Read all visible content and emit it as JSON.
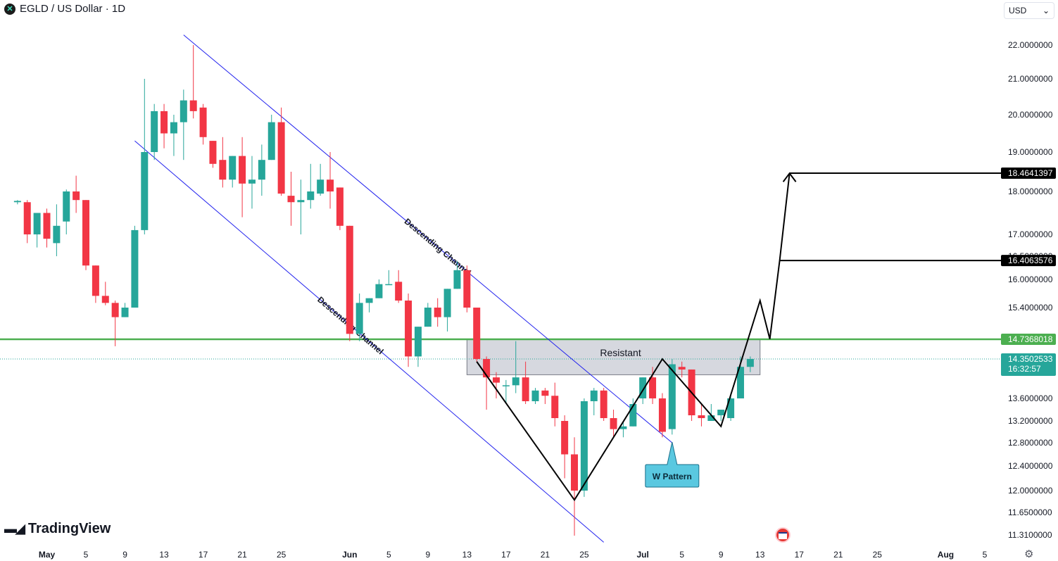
{
  "header": {
    "symbol_icon": "egld-logo-icon",
    "title": "EGLD / US Dollar · 1D"
  },
  "currency_select": {
    "value": "USD"
  },
  "branding": {
    "logo_text": "TradingView"
  },
  "footer": {
    "settings_icon": "gear-icon"
  },
  "colors": {
    "up": "#26a69a",
    "down": "#f23645",
    "channel": "#2222ee",
    "support": "#4caf50",
    "grid": "#f0f3fa"
  },
  "chart_data": {
    "type": "candlestick",
    "price_axis_ticks": [
      "22.0000000",
      "21.0000000",
      "20.0000000",
      "19.0000000",
      "18.0000000",
      "17.0000000",
      "16.5000000",
      "16.0000000",
      "15.4000000",
      "14.7368018",
      "13.6000000",
      "13.2000000",
      "12.8000000",
      "12.4000000",
      "12.0000000",
      "11.6500000",
      "11.3100000"
    ],
    "time_axis_ticks": [
      "May",
      "5",
      "9",
      "13",
      "17",
      "21",
      "25",
      "Jun",
      "5",
      "9",
      "13",
      "17",
      "21",
      "25",
      "Jul",
      "5",
      "9",
      "13",
      "17",
      "21",
      "25",
      "Aug",
      "5"
    ],
    "candles": [
      {
        "date": "2024-04-28",
        "o": 17.75,
        "h": 17.8,
        "l": 17.7,
        "c": 17.78
      },
      {
        "date": "2024-04-29",
        "o": 17.75,
        "h": 17.8,
        "l": 16.8,
        "c": 17.0
      },
      {
        "date": "2024-04-30",
        "o": 17.0,
        "h": 17.5,
        "l": 16.7,
        "c": 17.5
      },
      {
        "date": "2024-05-01",
        "o": 17.5,
        "h": 17.6,
        "l": 16.7,
        "c": 16.9
      },
      {
        "date": "2024-05-02",
        "o": 16.8,
        "h": 17.7,
        "l": 16.5,
        "c": 17.2
      },
      {
        "date": "2024-05-03",
        "o": 17.3,
        "h": 18.05,
        "l": 17.0,
        "c": 18.0
      },
      {
        "date": "2024-05-04",
        "o": 18.0,
        "h": 18.4,
        "l": 17.5,
        "c": 17.8
      },
      {
        "date": "2024-05-05",
        "o": 17.8,
        "h": 17.8,
        "l": 16.2,
        "c": 16.3
      },
      {
        "date": "2024-05-06",
        "o": 16.3,
        "h": 16.3,
        "l": 15.5,
        "c": 15.65
      },
      {
        "date": "2024-05-07",
        "o": 15.65,
        "h": 15.95,
        "l": 15.45,
        "c": 15.5
      },
      {
        "date": "2024-05-08",
        "o": 15.5,
        "h": 15.55,
        "l": 14.6,
        "c": 15.2
      },
      {
        "date": "2024-05-09",
        "o": 15.2,
        "h": 15.5,
        "l": 15.2,
        "c": 15.4
      },
      {
        "date": "2024-05-10",
        "o": 15.4,
        "h": 17.2,
        "l": 15.4,
        "c": 17.1
      },
      {
        "date": "2024-05-11",
        "o": 17.1,
        "h": 21.0,
        "l": 17.0,
        "c": 19.0
      },
      {
        "date": "2024-05-12",
        "o": 19.0,
        "h": 20.3,
        "l": 18.8,
        "c": 20.1
      },
      {
        "date": "2024-05-13",
        "o": 20.1,
        "h": 20.3,
        "l": 19.1,
        "c": 19.5
      },
      {
        "date": "2024-05-14",
        "o": 19.5,
        "h": 20.0,
        "l": 18.9,
        "c": 19.8
      },
      {
        "date": "2024-05-15",
        "o": 19.8,
        "h": 20.7,
        "l": 18.8,
        "c": 20.4
      },
      {
        "date": "2024-05-16",
        "o": 20.4,
        "h": 22.0,
        "l": 19.9,
        "c": 20.1
      },
      {
        "date": "2024-05-17",
        "o": 20.2,
        "h": 20.3,
        "l": 19.2,
        "c": 19.4
      },
      {
        "date": "2024-05-18",
        "o": 19.3,
        "h": 19.3,
        "l": 18.6,
        "c": 18.7
      },
      {
        "date": "2024-05-19",
        "o": 18.8,
        "h": 19.4,
        "l": 18.1,
        "c": 18.3
      },
      {
        "date": "2024-05-20",
        "o": 18.3,
        "h": 18.9,
        "l": 18.1,
        "c": 18.9
      },
      {
        "date": "2024-05-21",
        "o": 18.9,
        "h": 19.4,
        "l": 17.4,
        "c": 18.2
      },
      {
        "date": "2024-05-22",
        "o": 18.2,
        "h": 18.9,
        "l": 17.6,
        "c": 18.3
      },
      {
        "date": "2024-05-23",
        "o": 18.3,
        "h": 19.2,
        "l": 17.9,
        "c": 18.8
      },
      {
        "date": "2024-05-24",
        "o": 18.8,
        "h": 20.0,
        "l": 18.8,
        "c": 19.8
      },
      {
        "date": "2024-05-25",
        "o": 19.8,
        "h": 20.2,
        "l": 17.9,
        "c": 17.95
      },
      {
        "date": "2024-05-26",
        "o": 17.9,
        "h": 18.5,
        "l": 17.2,
        "c": 17.75
      },
      {
        "date": "2024-05-27",
        "o": 17.75,
        "h": 18.3,
        "l": 17.0,
        "c": 17.8
      },
      {
        "date": "2024-05-28",
        "o": 17.8,
        "h": 18.7,
        "l": 17.6,
        "c": 18.0
      },
      {
        "date": "2024-05-29",
        "o": 17.95,
        "h": 18.7,
        "l": 17.9,
        "c": 18.3
      },
      {
        "date": "2024-05-30",
        "o": 18.3,
        "h": 19.0,
        "l": 17.6,
        "c": 18.0
      },
      {
        "date": "2024-05-31",
        "o": 18.1,
        "h": 18.1,
        "l": 17.1,
        "c": 17.2
      },
      {
        "date": "2024-06-01",
        "o": 17.2,
        "h": 17.2,
        "l": 14.7,
        "c": 14.85
      },
      {
        "date": "2024-06-02",
        "o": 14.85,
        "h": 15.7,
        "l": 14.7,
        "c": 15.5
      },
      {
        "date": "2024-06-03",
        "o": 15.5,
        "h": 15.6,
        "l": 15.3,
        "c": 15.6
      },
      {
        "date": "2024-06-04",
        "o": 15.6,
        "h": 16.0,
        "l": 15.6,
        "c": 15.9
      },
      {
        "date": "2024-06-05",
        "o": 15.9,
        "h": 16.2,
        "l": 15.9,
        "c": 15.9
      },
      {
        "date": "2024-06-06",
        "o": 15.95,
        "h": 16.2,
        "l": 15.5,
        "c": 15.55
      },
      {
        "date": "2024-06-07",
        "o": 15.55,
        "h": 15.7,
        "l": 14.2,
        "c": 14.4
      },
      {
        "date": "2024-06-08",
        "o": 14.4,
        "h": 15.0,
        "l": 14.2,
        "c": 15.0
      },
      {
        "date": "2024-06-09",
        "o": 15.0,
        "h": 15.5,
        "l": 15.0,
        "c": 15.4
      },
      {
        "date": "2024-06-10",
        "o": 15.4,
        "h": 15.6,
        "l": 15.0,
        "c": 15.2
      },
      {
        "date": "2024-06-11",
        "o": 15.2,
        "h": 15.8,
        "l": 14.9,
        "c": 15.8
      },
      {
        "date": "2024-06-12",
        "o": 15.8,
        "h": 16.4,
        "l": 15.8,
        "c": 16.2
      },
      {
        "date": "2024-06-13",
        "o": 16.2,
        "h": 16.3,
        "l": 15.3,
        "c": 15.4
      },
      {
        "date": "2024-06-14",
        "o": 15.4,
        "h": 15.4,
        "l": 14.3,
        "c": 14.35
      },
      {
        "date": "2024-06-15",
        "o": 14.35,
        "h": 14.4,
        "l": 13.4,
        "c": 14.0
      },
      {
        "date": "2024-06-16",
        "o": 14.0,
        "h": 14.1,
        "l": 13.6,
        "c": 13.9
      },
      {
        "date": "2024-06-17",
        "o": 13.85,
        "h": 13.95,
        "l": 13.5,
        "c": 13.85
      },
      {
        "date": "2024-06-18",
        "o": 13.85,
        "h": 14.7,
        "l": 13.7,
        "c": 14.0
      },
      {
        "date": "2024-06-19",
        "o": 14.0,
        "h": 14.3,
        "l": 13.5,
        "c": 13.55
      },
      {
        "date": "2024-06-20",
        "o": 13.55,
        "h": 13.8,
        "l": 13.5,
        "c": 13.75
      },
      {
        "date": "2024-06-21",
        "o": 13.75,
        "h": 13.8,
        "l": 13.5,
        "c": 13.65
      },
      {
        "date": "2024-06-22",
        "o": 13.65,
        "h": 13.9,
        "l": 13.1,
        "c": 13.25
      },
      {
        "date": "2024-06-23",
        "o": 13.2,
        "h": 13.3,
        "l": 12.2,
        "c": 12.6
      },
      {
        "date": "2024-06-24",
        "o": 12.6,
        "h": 12.9,
        "l": 11.3,
        "c": 12.0
      },
      {
        "date": "2024-06-25",
        "o": 12.0,
        "h": 13.6,
        "l": 11.9,
        "c": 13.55
      },
      {
        "date": "2024-06-26",
        "o": 13.55,
        "h": 13.8,
        "l": 13.3,
        "c": 13.75
      },
      {
        "date": "2024-06-27",
        "o": 13.75,
        "h": 13.8,
        "l": 13.2,
        "c": 13.25
      },
      {
        "date": "2024-06-28",
        "o": 13.25,
        "h": 13.4,
        "l": 12.9,
        "c": 13.05
      },
      {
        "date": "2024-06-29",
        "o": 13.05,
        "h": 13.2,
        "l": 12.9,
        "c": 13.1
      },
      {
        "date": "2024-06-30",
        "o": 13.1,
        "h": 13.6,
        "l": 13.1,
        "c": 13.5
      },
      {
        "date": "2024-07-01",
        "o": 13.6,
        "h": 14.0,
        "l": 13.5,
        "c": 14.0
      },
      {
        "date": "2024-07-02",
        "o": 14.0,
        "h": 14.2,
        "l": 13.5,
        "c": 13.6
      },
      {
        "date": "2024-07-03",
        "o": 13.6,
        "h": 13.7,
        "l": 12.9,
        "c": 13.0
      },
      {
        "date": "2024-07-04",
        "o": 13.05,
        "h": 14.35,
        "l": 12.95,
        "c": 14.25
      },
      {
        "date": "2024-07-05",
        "o": 14.2,
        "h": 14.3,
        "l": 14.0,
        "c": 14.15
      },
      {
        "date": "2024-07-06",
        "o": 14.15,
        "h": 14.15,
        "l": 13.2,
        "c": 13.3
      },
      {
        "date": "2024-07-07",
        "o": 13.3,
        "h": 13.5,
        "l": 13.1,
        "c": 13.25
      },
      {
        "date": "2024-07-08",
        "o": 13.2,
        "h": 13.5,
        "l": 13.2,
        "c": 13.3
      },
      {
        "date": "2024-07-09",
        "o": 13.3,
        "h": 13.4,
        "l": 13.2,
        "c": 13.4
      },
      {
        "date": "2024-07-10",
        "o": 13.25,
        "h": 13.7,
        "l": 13.2,
        "c": 13.6
      },
      {
        "date": "2024-07-11",
        "o": 13.6,
        "h": 14.4,
        "l": 13.6,
        "c": 14.2
      },
      {
        "date": "2024-07-12",
        "o": 14.2,
        "h": 14.4,
        "l": 14.1,
        "c": 14.35
      }
    ],
    "horizontal_lines": [
      {
        "price": 14.7368018,
        "label": "14.7368018",
        "style": "solid"
      }
    ],
    "current_price": {
      "label": "14.3502533",
      "countdown": "16:32:57"
    },
    "target_labels": [
      {
        "price": 18.4641397,
        "label": "18.4641397"
      },
      {
        "price": 16.4063576,
        "label": "16.4063576"
      }
    ],
    "resistance_zone": {
      "label": "Resistant",
      "top": 14.74,
      "bottom": 14.05
    },
    "channel_label_upper": "Descending Channel",
    "channel_label_lower": "Descending Channel",
    "pattern_callout": "W Pattern",
    "channel_upper": [
      {
        "date": "2024-05-15",
        "price": 22.3
      },
      {
        "date": "2024-07-04",
        "price": 12.8
      }
    ],
    "channel_lower": [
      {
        "date": "2024-05-10",
        "price": 19.3
      },
      {
        "date": "2024-06-27",
        "price": 11.2
      }
    ],
    "w_pattern_path": [
      {
        "date": "2024-06-14",
        "price": 14.3
      },
      {
        "date": "2024-06-24",
        "price": 11.85
      },
      {
        "date": "2024-07-03",
        "price": 14.35
      },
      {
        "date": "2024-07-09",
        "price": 13.1
      },
      {
        "date": "2024-07-13",
        "price": 15.55
      },
      {
        "date": "2024-07-14",
        "price": 14.74
      },
      {
        "date": "2024-07-14",
        "price": 16.41
      },
      {
        "date": "2024-07-14",
        "price": 18.46
      }
    ]
  }
}
